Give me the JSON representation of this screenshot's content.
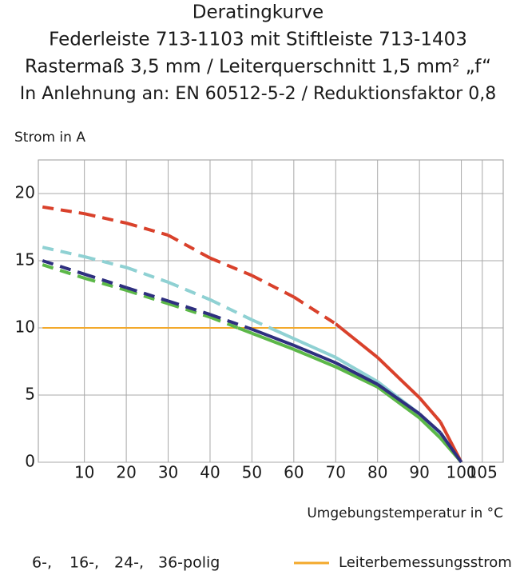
{
  "chart_data": {
    "type": "line",
    "title": [
      "Deratingkurve",
      "Federleiste 713-1103 mit Stiftleiste 713-1403",
      "Rastermaß 3,5 mm / Leiterquerschnitt 1,5 mm² „f“",
      "In Anlehnung an: EN 60512-5-2 / Reduktionsfaktor 0,8"
    ],
    "y_label": "Strom in A",
    "x_label": "Umgebungstemperatur in °C",
    "x": [
      0,
      10,
      20,
      30,
      40,
      50,
      60,
      70,
      80,
      90,
      95,
      100
    ],
    "series": [
      {
        "name": "6-,",
        "color": "#d9412b",
        "values": [
          19,
          18.5,
          17.8,
          16.9,
          15.2,
          13.9,
          12.3,
          10.3,
          7.8,
          4.8,
          3,
          0
        ]
      },
      {
        "name": "16-,",
        "color": "#8fd1d3",
        "values": [
          16,
          15.3,
          14.5,
          13.4,
          12.1,
          10.6,
          9.2,
          7.8,
          6,
          3.6,
          2,
          0
        ]
      },
      {
        "name": "24-,",
        "color": "#5cb848",
        "values": [
          14.7,
          13.7,
          12.8,
          11.8,
          10.8,
          9.6,
          8.4,
          7.1,
          5.6,
          3.3,
          1.8,
          0
        ]
      },
      {
        "name": "36-polig",
        "color": "#2e2f7f",
        "values": [
          15,
          14,
          13,
          12,
          11,
          9.9,
          8.7,
          7.4,
          5.8,
          3.6,
          2.2,
          0
        ]
      }
    ],
    "rated": {
      "name": "Leiterbemessungsstrom",
      "color": "#f3a92b",
      "x": [
        0,
        70
      ],
      "values": [
        10,
        10
      ]
    },
    "xlim": [
      -1,
      110
    ],
    "ylim": [
      0,
      22.5
    ],
    "xticks": [
      10,
      20,
      30,
      40,
      50,
      60,
      70,
      80,
      90,
      100,
      105
    ],
    "yticks": [
      0,
      5,
      10,
      15,
      20
    ],
    "grid": true
  }
}
